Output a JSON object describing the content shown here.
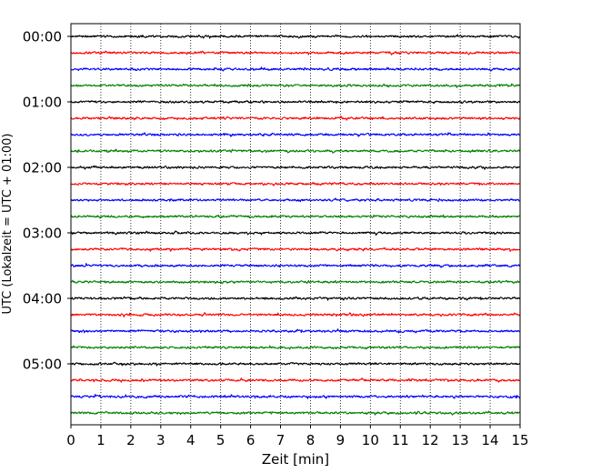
{
  "chart_data": {
    "type": "line",
    "title": "",
    "xlabel": "Zeit  [min]",
    "ylabel": "UTC (Lokalzeit = UTC + 01:00)",
    "xlim": [
      0,
      15
    ],
    "x_ticks": [
      "0",
      "1",
      "2",
      "3",
      "4",
      "5",
      "6",
      "7",
      "8",
      "9",
      "10",
      "11",
      "12",
      "13",
      "14",
      "15"
    ],
    "y_tick_labels": [
      "00:00",
      "01:00",
      "02:00",
      "03:00",
      "04:00",
      "05:00"
    ],
    "trace_interval_minutes": 15,
    "trace_count": 24,
    "trace_colors": [
      "#000000",
      "#ff0000",
      "#0000ff",
      "#008000"
    ],
    "grid": "vertical dotted",
    "series": [
      {
        "trace_start": "00:00",
        "color": "#000000"
      },
      {
        "trace_start": "00:15",
        "color": "#ff0000"
      },
      {
        "trace_start": "00:30",
        "color": "#0000ff"
      },
      {
        "trace_start": "00:45",
        "color": "#008000"
      },
      {
        "trace_start": "01:00",
        "color": "#000000"
      },
      {
        "trace_start": "01:15",
        "color": "#ff0000"
      },
      {
        "trace_start": "01:30",
        "color": "#0000ff"
      },
      {
        "trace_start": "01:45",
        "color": "#008000"
      },
      {
        "trace_start": "02:00",
        "color": "#000000"
      },
      {
        "trace_start": "02:15",
        "color": "#ff0000"
      },
      {
        "trace_start": "02:30",
        "color": "#0000ff"
      },
      {
        "trace_start": "02:45",
        "color": "#008000"
      },
      {
        "trace_start": "03:00",
        "color": "#000000"
      },
      {
        "trace_start": "03:15",
        "color": "#ff0000"
      },
      {
        "trace_start": "03:30",
        "color": "#0000ff"
      },
      {
        "trace_start": "03:45",
        "color": "#008000"
      },
      {
        "trace_start": "04:00",
        "color": "#000000"
      },
      {
        "trace_start": "04:15",
        "color": "#ff0000"
      },
      {
        "trace_start": "04:30",
        "color": "#0000ff"
      },
      {
        "trace_start": "04:45",
        "color": "#008000"
      },
      {
        "trace_start": "05:00",
        "color": "#000000"
      },
      {
        "trace_start": "05:15",
        "color": "#ff0000"
      },
      {
        "trace_start": "05:30",
        "color": "#0000ff"
      },
      {
        "trace_start": "05:45",
        "color": "#008000"
      }
    ]
  }
}
